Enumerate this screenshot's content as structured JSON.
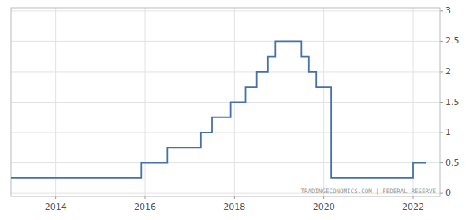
{
  "chart_data": {
    "type": "line",
    "x": [
      2013.0,
      2015.917,
      2015.917,
      2016.5,
      2016.5,
      2016.917,
      2016.917,
      2017.25,
      2017.25,
      2017.5,
      2017.5,
      2017.917,
      2017.917,
      2018.25,
      2018.25,
      2018.5,
      2018.5,
      2018.75,
      2018.75,
      2018.917,
      2018.917,
      2019.5,
      2019.5,
      2019.667,
      2019.667,
      2019.833,
      2019.833,
      2020.167,
      2020.167,
      2022.0,
      2022.0,
      2022.3
    ],
    "values": [
      0.25,
      0.25,
      0.5,
      0.5,
      0.75,
      0.75,
      0.75,
      0.75,
      1.0,
      1.0,
      1.25,
      1.25,
      1.5,
      1.5,
      1.75,
      1.75,
      2.0,
      2.0,
      2.25,
      2.25,
      2.5,
      2.5,
      2.25,
      2.25,
      2.0,
      2.0,
      1.75,
      1.75,
      0.25,
      0.25,
      0.5,
      0.5
    ],
    "color": "#4472a8",
    "xlim": [
      2013.0,
      2022.6
    ],
    "ylim": [
      -0.05,
      3.05
    ],
    "xticks": [
      2014,
      2016,
      2018,
      2020,
      2022
    ],
    "yticks": [
      0,
      0.5,
      1,
      1.5,
      2,
      2.5,
      3
    ],
    "grid": true,
    "annotations": [
      "TRADINGECONOMICS.COM | FEDERAL RESERVE"
    ]
  }
}
